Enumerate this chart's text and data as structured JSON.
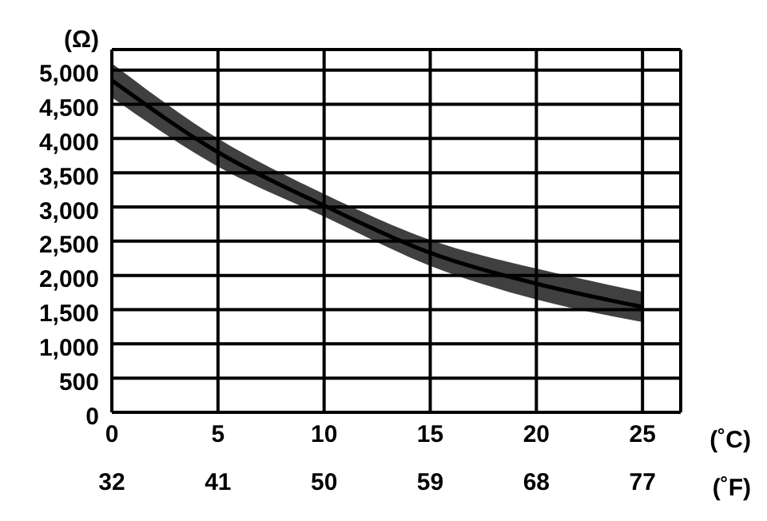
{
  "chart_data": {
    "type": "line",
    "ylabel": "(Ω)",
    "xlabel": "(˚C)",
    "x2label": "(˚F)",
    "x": [
      0,
      5,
      10,
      15,
      20,
      25
    ],
    "series": [
      {
        "color": "#000000",
        "values": [
          4850,
          3800,
          3020,
          2330,
          1880,
          1540
        ],
        "lower": [
          4600,
          3590,
          2860,
          2140,
          1650,
          1320
        ],
        "upper": [
          5100,
          4000,
          3190,
          2520,
          2100,
          1760
        ]
      }
    ],
    "xlim": [
      0,
      26.8
    ],
    "xticks": [
      0,
      5,
      10,
      15,
      20,
      25
    ],
    "x2lim": [
      32,
      80.24
    ],
    "x2ticks": [
      32,
      41,
      50,
      59,
      68,
      77
    ],
    "ylim": [
      0,
      5300
    ],
    "yticks": [
      0,
      500,
      {
        "value": 1000,
        "label": "1,000"
      },
      {
        "value": 1500,
        "label": "1,500"
      },
      {
        "value": 2000,
        "label": "2,000"
      },
      {
        "value": 2500,
        "label": "2,500"
      },
      {
        "value": 3000,
        "label": "3,000"
      },
      {
        "value": 3500,
        "label": "3,500"
      },
      {
        "value": 4000,
        "label": "4,000"
      },
      {
        "value": 4500,
        "label": "4,500"
      },
      {
        "value": 5000,
        "label": "5,000"
      }
    ],
    "grid": true,
    "legend": false
  }
}
